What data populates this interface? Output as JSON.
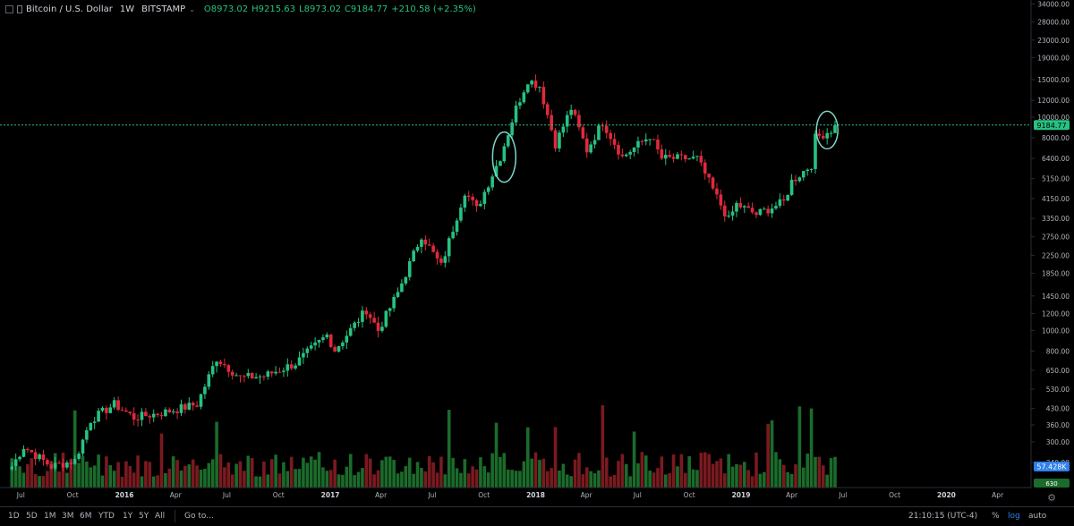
{
  "header": {
    "symbol": "Bitcoin / U.S. Dollar",
    "interval": "1W",
    "exchange": "BITSTAMP",
    "open": "O8973.02",
    "high": "H9215.63",
    "low": "L8973.02",
    "close": "C9184.77",
    "change": "+210.58 (+2.35%)"
  },
  "bottom_bar": {
    "ranges": [
      "1D",
      "5D",
      "1M",
      "3M",
      "6M",
      "YTD",
      "1Y",
      "5Y",
      "All"
    ],
    "goto": "Go to...",
    "clock": "21:10:15 (UTC-4)",
    "percent": "%",
    "log": "log",
    "auto": "auto"
  },
  "colors": {
    "up": "#26c281",
    "down": "#e0293b",
    "up_volume": "#1b6b2b",
    "down_volume": "#7a1a1f",
    "price_line": "#26c281",
    "ellipse": "#7fd6c8"
  },
  "chart_data": {
    "type": "candlestick",
    "scale": "log",
    "y_ticks": [
      "34000.00",
      "28000.00",
      "23000.00",
      "19000.00",
      "15000.00",
      "12000.00",
      "10000.00",
      "8000.00",
      "6400.00",
      "5150.00",
      "4150.00",
      "3350.00",
      "2750.00",
      "2250.00",
      "1850.00",
      "1450.00",
      "1200.00",
      "1000.00",
      "800.00",
      "650.00",
      "530.00",
      "430.00",
      "360.00",
      "300.00",
      "240.00"
    ],
    "x_ticks": [
      "Jul",
      "Oct",
      "2016",
      "Apr",
      "Jul",
      "Oct",
      "2017",
      "Apr",
      "Jul",
      "Oct",
      "2018",
      "Apr",
      "Jul",
      "Oct",
      "2019",
      "Apr",
      "Jul",
      "Oct",
      "2020",
      "Apr"
    ],
    "last_price": "9184.77",
    "volume_label": "57.428K",
    "volume_bottom": "630",
    "series_anchors": [
      [
        "2015-06-15",
        230
      ],
      [
        "2015-07-06",
        285
      ],
      [
        "2015-08-24",
        230
      ],
      [
        "2015-10-05",
        245
      ],
      [
        "2015-11-02",
        380
      ],
      [
        "2015-12-14",
        450
      ],
      [
        "2016-01-18",
        390
      ],
      [
        "2016-03-07",
        410
      ],
      [
        "2016-05-09",
        450
      ],
      [
        "2016-06-13",
        740
      ],
      [
        "2016-07-25",
        600
      ],
      [
        "2016-09-05",
        610
      ],
      [
        "2016-10-31",
        700
      ],
      [
        "2016-12-26",
        950
      ],
      [
        "2017-01-09",
        810
      ],
      [
        "2017-03-06",
        1250
      ],
      [
        "2017-03-27",
        1000
      ],
      [
        "2017-05-01",
        1500
      ],
      [
        "2017-06-12",
        2800
      ],
      [
        "2017-07-17",
        2000
      ],
      [
        "2017-08-28",
        4500
      ],
      [
        "2017-09-18",
        3700
      ],
      [
        "2017-10-30",
        6500
      ],
      [
        "2017-11-27",
        11000
      ],
      [
        "2017-12-18",
        15000
      ],
      [
        "2018-01-08",
        14000
      ],
      [
        "2018-02-05",
        7500
      ],
      [
        "2018-03-05",
        11000
      ],
      [
        "2018-04-02",
        7000
      ],
      [
        "2018-04-30",
        9500
      ],
      [
        "2018-06-04",
        6500
      ],
      [
        "2018-07-23",
        8200
      ],
      [
        "2018-08-13",
        6400
      ],
      [
        "2018-10-15",
        6400
      ],
      [
        "2018-11-19",
        4200
      ],
      [
        "2018-12-10",
        3300
      ],
      [
        "2018-12-24",
        3900
      ],
      [
        "2019-01-28",
        3500
      ],
      [
        "2019-03-18",
        4000
      ],
      [
        "2019-04-01",
        5000
      ],
      [
        "2019-05-06",
        6000
      ],
      [
        "2019-05-13",
        8000
      ],
      [
        "2019-06-10",
        8700
      ],
      [
        "2019-06-17",
        9184.77
      ]
    ]
  }
}
